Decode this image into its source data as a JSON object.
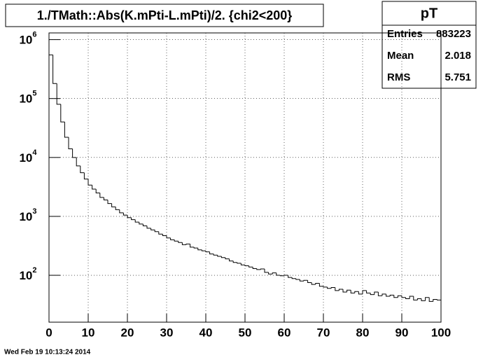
{
  "chart_data": {
    "type": "histogram",
    "title": "1./TMath::Abs(K.mPti-L.mPti)/2. {chi2<200}",
    "stats": {
      "title": "pT",
      "rows": [
        {
          "name": "Entries",
          "value": "883223"
        },
        {
          "name": "Mean",
          "value": "2.018"
        },
        {
          "name": "RMS",
          "value": "5.751"
        }
      ]
    },
    "timestamp": "Wed Feb 19 10:13:24 2014",
    "color": "#000000",
    "log_y": true,
    "grid": true,
    "bins": [
      0,
      1,
      2,
      3,
      4,
      5,
      6,
      7,
      8,
      9,
      10,
      11,
      12,
      13,
      14,
      15,
      16,
      17,
      18,
      19,
      20,
      21,
      22,
      23,
      24,
      25,
      26,
      27,
      28,
      29,
      30,
      31,
      32,
      33,
      34,
      35,
      36,
      37,
      38,
      39,
      40,
      41,
      42,
      43,
      44,
      45,
      46,
      47,
      48,
      49,
      50,
      51,
      52,
      53,
      54,
      55,
      56,
      57,
      58,
      59,
      60,
      61,
      62,
      63,
      64,
      65,
      66,
      67,
      68,
      69,
      70,
      71,
      72,
      73,
      74,
      75,
      76,
      77,
      78,
      79,
      80,
      81,
      82,
      83,
      84,
      85,
      86,
      87,
      88,
      89,
      90,
      91,
      92,
      93,
      94,
      95,
      96,
      97,
      98,
      99,
      100
    ],
    "values": [
      550000,
      180000,
      80000,
      40000,
      22000,
      14000,
      10000,
      7200,
      5500,
      4300,
      3400,
      2900,
      2500,
      2100,
      1900,
      1650,
      1450,
      1300,
      1150,
      1050,
      950,
      880,
      800,
      740,
      690,
      630,
      590,
      550,
      500,
      470,
      430,
      400,
      380,
      360,
      330,
      340,
      300,
      290,
      270,
      260,
      250,
      230,
      220,
      210,
      200,
      190,
      175,
      165,
      160,
      150,
      145,
      138,
      130,
      125,
      128,
      112,
      105,
      110,
      100,
      98,
      100,
      92,
      88,
      85,
      80,
      82,
      75,
      70,
      73,
      65,
      63,
      60,
      62,
      55,
      58,
      52,
      56,
      50,
      53,
      48,
      55,
      50,
      47,
      52,
      45,
      48,
      44,
      46,
      42,
      45,
      42,
      40,
      44,
      38,
      40,
      37,
      42,
      36,
      39,
      38
    ],
    "xlim": [
      0,
      100
    ],
    "xticks": [
      0,
      10,
      20,
      30,
      40,
      50,
      60,
      70,
      80,
      90,
      100
    ],
    "ylim": [
      16,
      1300000
    ],
    "yticks": [
      {
        "value": 100,
        "label": "10",
        "exponent": "2"
      },
      {
        "value": 1000,
        "label": "10",
        "exponent": "3"
      },
      {
        "value": 10000,
        "label": "10",
        "exponent": "4"
      },
      {
        "value": 100000,
        "label": "10",
        "exponent": "5"
      },
      {
        "value": 1000000,
        "label": "10",
        "exponent": "6"
      }
    ]
  }
}
